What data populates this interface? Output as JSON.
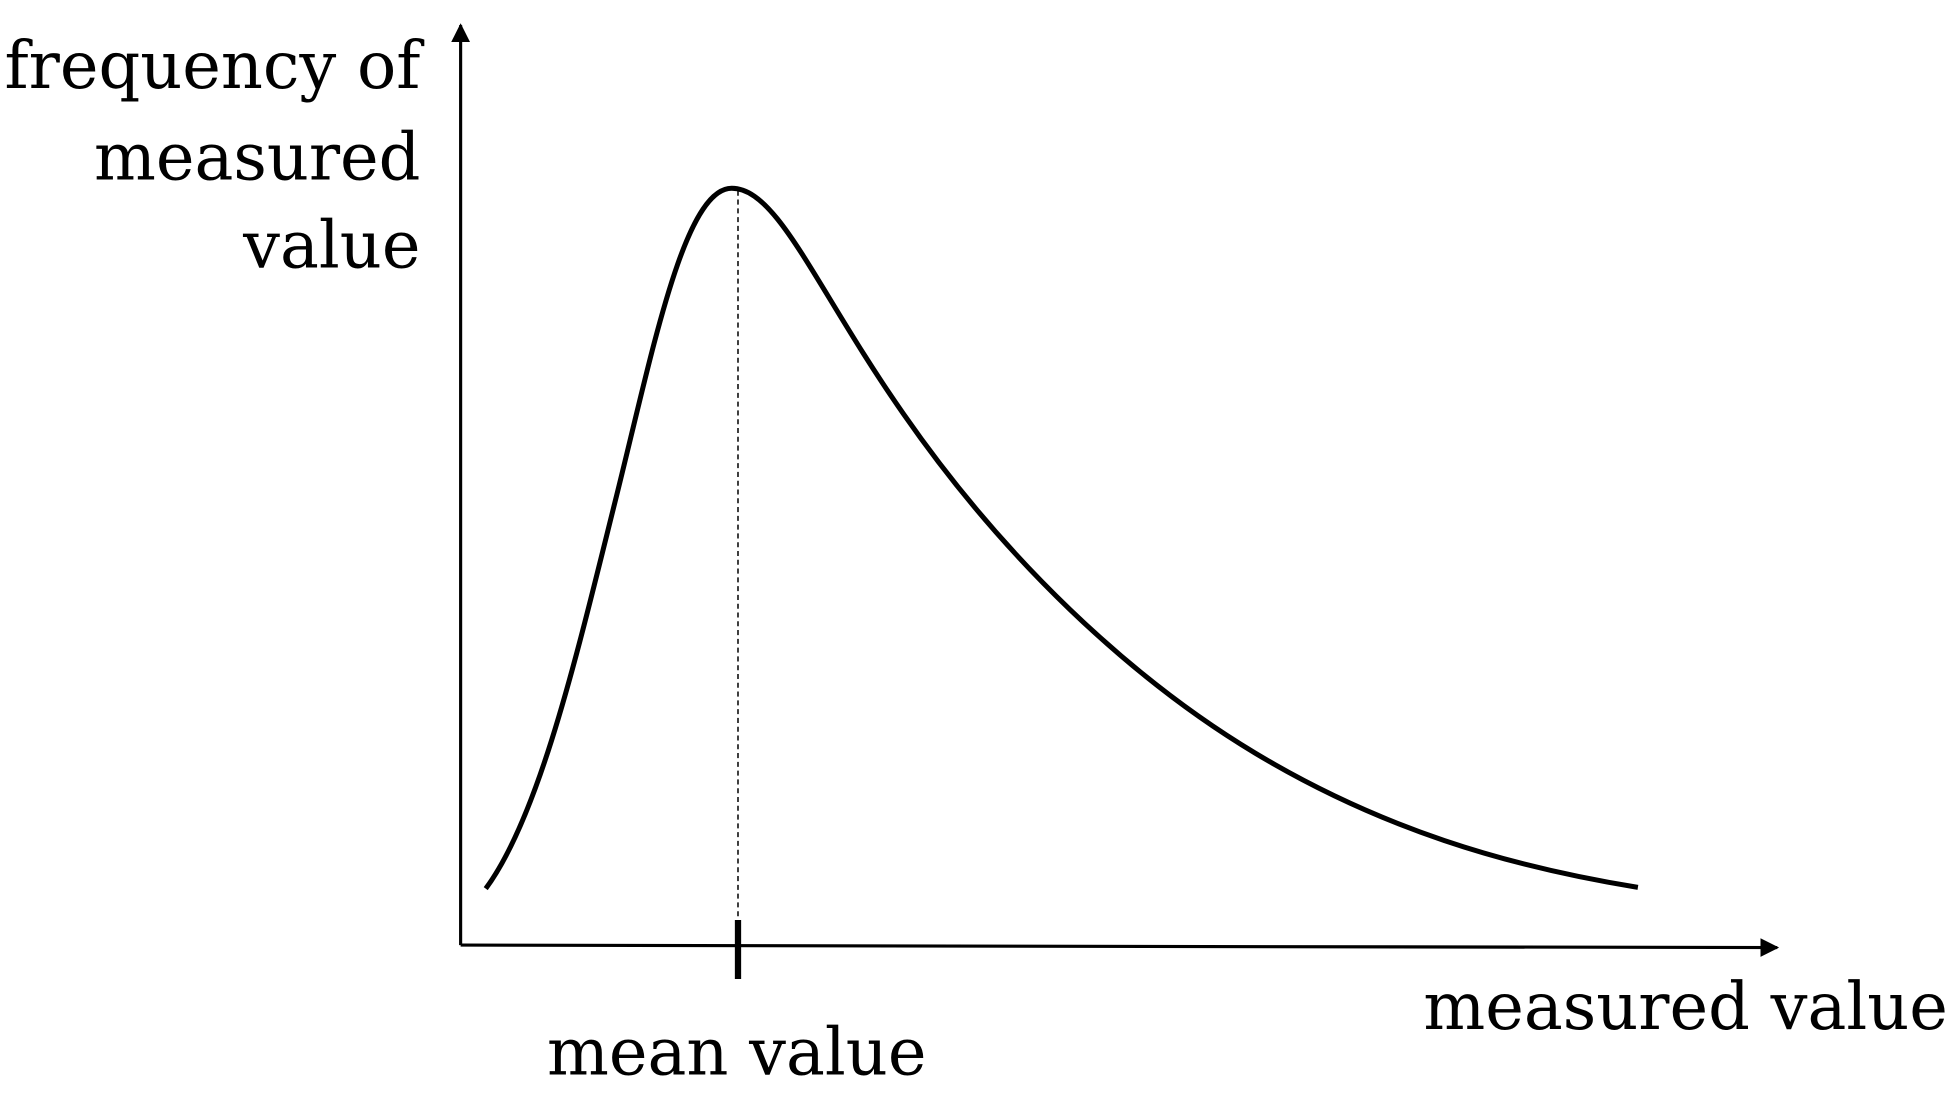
{
  "y_axis_label": [
    "frequency of",
    "measured",
    "value"
  ],
  "x_axis_label": "measured value",
  "mean_label": "mean value"
}
